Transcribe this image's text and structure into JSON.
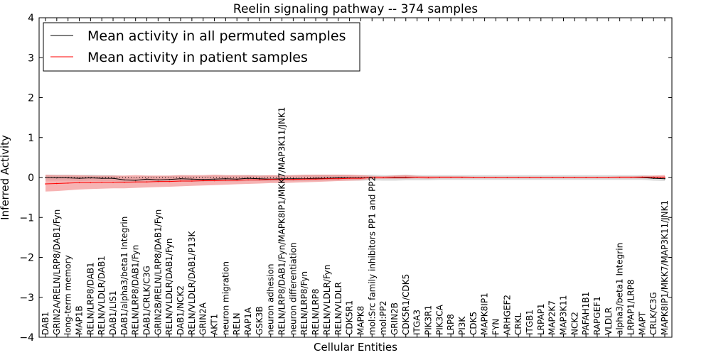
{
  "chart_data": {
    "type": "line",
    "title": "Reelin signaling pathway -- 374 samples",
    "xlabel": "Cellular Entities",
    "ylabel": "Inferred Activity",
    "ylim": [
      -4,
      4
    ],
    "yticks": [
      -4,
      -3,
      -2,
      -1,
      0,
      1,
      2,
      3,
      4
    ],
    "ytick_labels": [
      "−4",
      "−3",
      "−2",
      "−1",
      "0",
      "1",
      "2",
      "3",
      "4"
    ],
    "legend_position": "top-left",
    "categories": [
      "DAB1",
      "GRIN2A/RELN/LRP8/DAB1/Fyn",
      "long-term memory",
      "MAP1B",
      "RELN/LRP8/DAB1",
      "RELN/VLDLR/DAB1",
      "DAB1/LIS1",
      "DAB1/alpha3/beta1 Integrin",
      "RELN/LRP8/DAB1/Fyn",
      "DAB1/CRLK/C3G",
      "GRIN2B/RELN/LRP8/DAB1/Fyn",
      "RELN/VLDLR/DAB1/Fyn",
      "DAB1/NCK2",
      "RELN/VLDLR/DAB1/P13K",
      "GRIN2A",
      "AKT1",
      "neuron migration",
      "RELN",
      "RAP1A",
      "GSK3B",
      "neuron adhesion",
      "RELN/LRP8/DAB1/Fyn/MAPK8IP1/MKK7/MAP3K11/JNK1",
      "neuron differentiation",
      "RELN/LRP8/Fyn",
      "RELN/LRP8",
      "RELN/VLDLR/Fyn",
      "RELN/VLDLR",
      "CDK5R1",
      "MAPK8",
      "mol:Src family inhibitors PP1 and PP2",
      "mol:PP2",
      "GRIN2B",
      "CDK5R1/CDK5",
      "ITGA3",
      "PIK3R1",
      "PIK3CA",
      "LRP8",
      "PI3K",
      "CDK5",
      "MAPK8IP1",
      "FYN",
      "ARHGEF2",
      "CRKL",
      "ITGB1",
      "LRPAP1",
      "MAP2K7",
      "MAP3K11",
      "NCK2",
      "PAFAH1B1",
      "RAPGEF1",
      "VLDLR",
      "alpha3/beta1 Integrin",
      "LRPAP1/LRP8",
      "MAPT",
      "CRLK/C3G",
      "MAPK8IP1/MKK7/MAP3K11/JNK1"
    ],
    "label_height": [
      1,
      1,
      1,
      1,
      1,
      1,
      1,
      1,
      1,
      1,
      1,
      1,
      1,
      1,
      1,
      1,
      1,
      1,
      1,
      1,
      1,
      2,
      1,
      1,
      1,
      1,
      1,
      1,
      1,
      2,
      1,
      1,
      1,
      1,
      1,
      1,
      1,
      1,
      1,
      1,
      1,
      1,
      1,
      1,
      1,
      1,
      1,
      1,
      1,
      1,
      1,
      1,
      1,
      1,
      1,
      2
    ],
    "series": [
      {
        "name": "Mean activity in all permuted samples",
        "color": "#000000",
        "band_color": "#bfbfbf",
        "values": [
          0.0,
          -0.01,
          -0.01,
          -0.02,
          -0.01,
          -0.02,
          -0.02,
          -0.06,
          -0.07,
          -0.04,
          -0.06,
          -0.05,
          -0.03,
          -0.04,
          -0.05,
          -0.04,
          -0.03,
          -0.04,
          -0.02,
          -0.03,
          -0.04,
          -0.03,
          -0.03,
          -0.03,
          -0.02,
          -0.02,
          -0.01,
          -0.01,
          -0.01,
          0.0,
          0.0,
          0.0,
          0.0,
          0.0,
          0.0,
          0.0,
          0.0,
          0.0,
          0.0,
          0.0,
          0.0,
          0.0,
          0.0,
          0.0,
          0.0,
          0.0,
          0.0,
          0.0,
          0.0,
          0.0,
          0.0,
          0.0,
          0.0,
          0.0,
          -0.02,
          -0.03
        ],
        "lower": [
          -0.08,
          -0.08,
          -0.08,
          -0.09,
          -0.08,
          -0.09,
          -0.09,
          -0.12,
          -0.13,
          -0.11,
          -0.12,
          -0.11,
          -0.1,
          -0.11,
          -0.11,
          -0.1,
          -0.1,
          -0.1,
          -0.09,
          -0.09,
          -0.1,
          -0.09,
          -0.09,
          -0.09,
          -0.08,
          -0.08,
          -0.07,
          -0.08,
          -0.08,
          -0.07,
          -0.08,
          -0.08,
          -0.07,
          -0.07,
          -0.07,
          -0.06,
          -0.06,
          -0.06,
          -0.06,
          -0.06,
          -0.06,
          -0.06,
          -0.06,
          -0.06,
          -0.06,
          -0.06,
          -0.06,
          -0.06,
          -0.06,
          -0.06,
          -0.06,
          -0.06,
          -0.06,
          -0.06,
          -0.08,
          -0.09
        ],
        "upper": [
          0.07,
          0.07,
          0.07,
          0.06,
          0.07,
          0.06,
          0.06,
          0.03,
          0.02,
          0.04,
          0.03,
          0.04,
          0.05,
          0.04,
          0.04,
          0.05,
          0.05,
          0.05,
          0.06,
          0.06,
          0.05,
          0.06,
          0.06,
          0.06,
          0.07,
          0.07,
          0.07,
          0.06,
          0.06,
          0.07,
          0.06,
          0.06,
          0.07,
          0.06,
          0.06,
          0.06,
          0.06,
          0.06,
          0.06,
          0.06,
          0.06,
          0.06,
          0.06,
          0.06,
          0.06,
          0.06,
          0.06,
          0.06,
          0.06,
          0.06,
          0.06,
          0.06,
          0.06,
          0.06,
          0.04,
          0.03
        ]
      },
      {
        "name": "Mean activity in patient samples",
        "color": "#ff0000",
        "band_color": "#f08080",
        "values": [
          -0.16,
          -0.15,
          -0.14,
          -0.13,
          -0.13,
          -0.12,
          -0.12,
          -0.12,
          -0.11,
          -0.11,
          -0.1,
          -0.1,
          -0.09,
          -0.09,
          -0.08,
          -0.08,
          -0.07,
          -0.07,
          -0.06,
          -0.06,
          -0.05,
          -0.05,
          -0.05,
          -0.04,
          -0.04,
          -0.03,
          -0.03,
          -0.02,
          -0.02,
          0.0,
          0.0,
          0.01,
          0.01,
          0.0,
          0.0,
          0.0,
          0.0,
          0.0,
          0.0,
          0.0,
          0.0,
          0.0,
          0.0,
          0.0,
          0.0,
          0.0,
          0.0,
          0.0,
          0.0,
          0.0,
          0.0,
          0.0,
          0.0,
          0.01,
          0.01,
          0.01
        ],
        "lower": [
          -0.35,
          -0.34,
          -0.32,
          -0.3,
          -0.29,
          -0.28,
          -0.27,
          -0.27,
          -0.26,
          -0.25,
          -0.24,
          -0.23,
          -0.22,
          -0.21,
          -0.2,
          -0.19,
          -0.18,
          -0.17,
          -0.16,
          -0.15,
          -0.14,
          -0.14,
          -0.13,
          -0.12,
          -0.11,
          -0.1,
          -0.09,
          -0.08,
          -0.07,
          -0.03,
          -0.03,
          -0.03,
          -0.03,
          -0.02,
          -0.03,
          -0.02,
          -0.02,
          -0.02,
          -0.02,
          -0.02,
          -0.02,
          -0.02,
          -0.02,
          -0.02,
          -0.02,
          -0.02,
          -0.02,
          -0.02,
          -0.02,
          -0.02,
          -0.02,
          -0.02,
          -0.02,
          -0.02,
          -0.02,
          -0.02
        ],
        "upper": [
          0.07,
          0.06,
          0.06,
          0.06,
          0.05,
          0.05,
          0.05,
          0.05,
          0.06,
          0.05,
          0.05,
          0.05,
          0.06,
          0.06,
          0.06,
          0.07,
          0.06,
          0.06,
          0.06,
          0.05,
          0.06,
          0.05,
          0.06,
          0.07,
          0.07,
          0.07,
          0.07,
          0.07,
          0.06,
          0.04,
          0.03,
          0.05,
          0.06,
          0.04,
          0.03,
          0.03,
          0.03,
          0.03,
          0.02,
          0.02,
          0.02,
          0.02,
          0.02,
          0.02,
          0.02,
          0.02,
          0.02,
          0.02,
          0.02,
          0.02,
          0.02,
          0.03,
          0.03,
          0.04,
          0.05,
          0.06
        ]
      }
    ]
  }
}
